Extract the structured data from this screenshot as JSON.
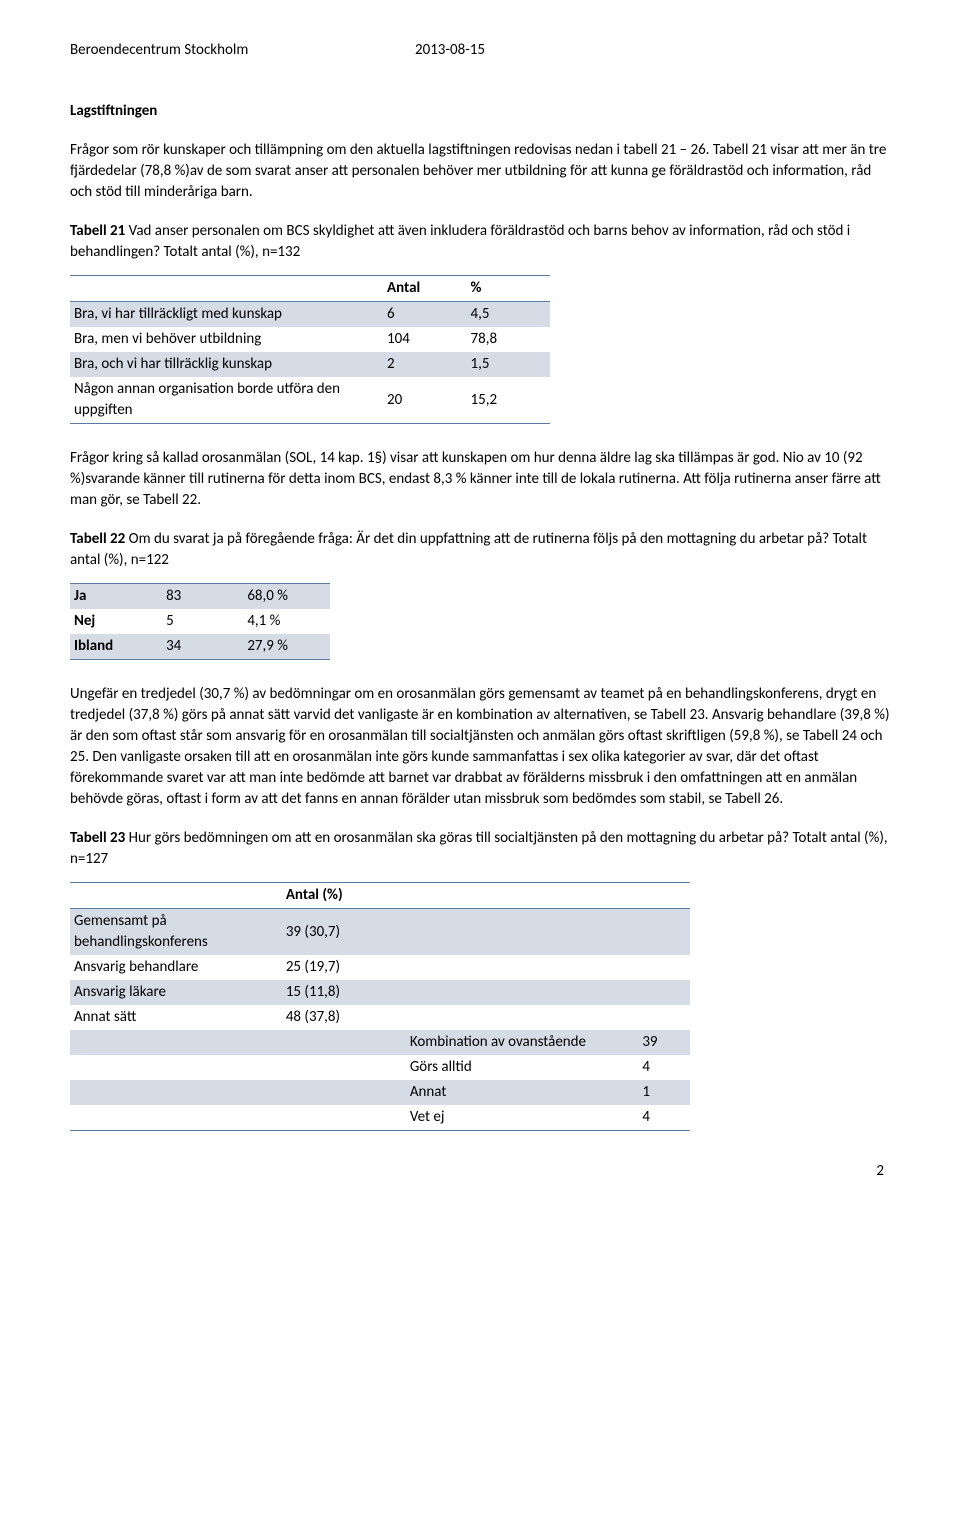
{
  "header": {
    "org": "Beroendecentrum Stockholm",
    "date": "2013-08-15"
  },
  "s1_heading": "Lagstiftningen",
  "s1_p1": "Frågor som rör kunskaper och tillämpning om den aktuella lagstiftningen redovisas nedan i tabell 21 – 26. Tabell 21 visar att mer än tre fjärdedelar (78,8 %)av de som svarat anser att personalen behöver mer utbildning för att kunna ge föräldrastöd och information, råd och stöd till minderåriga barn.",
  "t21_caption_bold": "Tabell 21",
  "t21_caption_rest": " Vad anser personalen om BCS skyldighet att även inkludera föräldrastöd och barns behov av information, råd och stöd i behandlingen? Totalt antal (%), n=132",
  "t21": {
    "h_antal": "Antal",
    "h_pct": "%",
    "rows": [
      {
        "label": "Bra, vi har tillräckligt med kunskap",
        "antal": "6",
        "pct": "4,5"
      },
      {
        "label": "Bra, men vi behöver utbildning",
        "antal": "104",
        "pct": "78,8"
      },
      {
        "label": "Bra, och vi har tillräcklig kunskap",
        "antal": "2",
        "pct": "1,5"
      },
      {
        "label": "Någon annan organisation borde utföra den uppgiften",
        "antal": "20",
        "pct": "15,2"
      }
    ]
  },
  "s2_p1": "Frågor kring så kallad orosanmälan (SOL, 14 kap. 1§) visar att kunskapen om hur denna äldre lag ska tillämpas är god. Nio av 10 (92 %)svarande känner till rutinerna för detta inom BCS, endast 8,3 % känner inte till de lokala rutinerna. Att följa rutinerna anser färre att man gör, se Tabell 22.",
  "t22_caption_bold": "Tabell 22",
  "t22_caption_rest": " Om du svarat ja på föregående fråga: Är det din uppfattning att de rutinerna följs på den mottagning du arbetar på? Totalt antal (%), n=122",
  "t22": {
    "rows": [
      {
        "label": "Ja",
        "a": "83",
        "b": "68,0 %"
      },
      {
        "label": "Nej",
        "a": "5",
        "b": "4,1 %"
      },
      {
        "label": "Ibland",
        "a": "34",
        "b": "27,9 %"
      }
    ]
  },
  "s3_p1": "Ungefär en tredjedel (30,7 %) av bedömningar om en orosanmälan görs gemensamt av teamet på en behandlingskonferens, drygt en tredjedel (37,8 %) görs på annat sätt varvid det vanligaste är en kombination av alternativen, se Tabell 23. Ansvarig behandlare (39,8 %) är den som oftast står som ansvarig för en orosanmälan till socialtjänsten och anmälan görs oftast skriftligen (59,8 %), se Tabell 24 och 25. Den vanligaste orsaken till att en orosanmälan inte görs kunde sammanfattas i sex olika kategorier av svar, där det oftast förekommande svaret var att man inte bedömde att barnet var drabbat av förälderns missbruk i den omfattningen att en anmälan behövde göras, oftast i form av att det fanns en annan förälder utan missbruk som bedömdes som stabil, se Tabell 26.",
  "t23_caption_bold": "Tabell 23",
  "t23_caption_rest": " Hur görs bedömningen om att en orosanmälan ska göras till socialtjänsten på den mottagning du arbetar på? Totalt antal (%), n=127",
  "t23": {
    "h_antal_pct": "Antal (%)",
    "rows": [
      {
        "label": "Gemensamt på behandlingskonferens",
        "val": "39 (30,7)"
      },
      {
        "label": "Ansvarig behandlare",
        "val": "25 (19,7)"
      },
      {
        "label": "Ansvarig läkare",
        "val": "15 (11,8)"
      },
      {
        "label": "Annat sätt",
        "val": "48 (37,8)"
      }
    ],
    "sub": [
      {
        "label": "Kombination av ovanstående",
        "val": "39"
      },
      {
        "label": "Görs alltid",
        "val": "4"
      },
      {
        "label": "Annat",
        "val": "1"
      },
      {
        "label": "Vet ej",
        "val": "4"
      }
    ]
  },
  "page_number": "2"
}
